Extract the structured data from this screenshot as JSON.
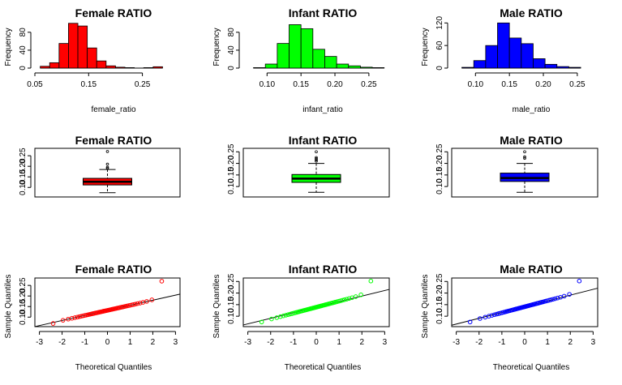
{
  "chart_data": [
    {
      "type": "bar",
      "title": "Female RATIO",
      "xlabel": "female_ratio",
      "ylabel": "Frequency",
      "color": "#ff0000",
      "bin_start": 0.06,
      "bin_width": 0.0175,
      "counts": [
        4,
        12,
        55,
        100,
        94,
        45,
        16,
        5,
        2,
        1,
        0,
        1,
        3
      ],
      "xticks": [
        "0.05",
        "0.15",
        "0.25"
      ],
      "xtick_values": [
        0.05,
        0.15,
        0.25
      ],
      "xlim": [
        0.05,
        0.32
      ],
      "yticks": [
        "0",
        "40",
        "80"
      ],
      "ytick_values": [
        0,
        40,
        80
      ],
      "ylim": [
        0,
        105
      ]
    },
    {
      "type": "bar",
      "title": "Infant RATIO",
      "xlabel": "infant_ratio",
      "ylabel": "Frequency",
      "color": "#00ff00",
      "bin_start": 0.08,
      "bin_width": 0.0175,
      "counts": [
        1,
        9,
        55,
        97,
        88,
        42,
        26,
        9,
        5,
        2,
        1
      ],
      "xticks": [
        "0.10",
        "0.15",
        "0.20",
        "0.25"
      ],
      "xtick_values": [
        0.1,
        0.15,
        0.2,
        0.25
      ],
      "xlim": [
        0.065,
        0.28
      ],
      "yticks": [
        "0",
        "40",
        "80"
      ],
      "ytick_values": [
        0,
        40,
        80
      ],
      "ylim": [
        0,
        105
      ]
    },
    {
      "type": "bar",
      "title": "Male RATIO",
      "xlabel": "male_ratio",
      "ylabel": "Frequency",
      "color": "#0000ff",
      "bin_start": 0.08,
      "bin_width": 0.0175,
      "counts": [
        2,
        20,
        60,
        120,
        80,
        65,
        25,
        10,
        4,
        2
      ],
      "xticks": [
        "0.10",
        "0.15",
        "0.20",
        "0.25"
      ],
      "xtick_values": [
        0.1,
        0.15,
        0.2,
        0.25
      ],
      "xlim": [
        0.065,
        0.28
      ],
      "yticks": [
        "0",
        "60",
        "120"
      ],
      "ytick_values": [
        0,
        60,
        120
      ],
      "ylim": [
        0,
        125
      ]
    },
    {
      "type": "boxplot",
      "title": "Female RATIO",
      "color": "#ff0000",
      "whisker_low": 0.075,
      "q1": 0.112,
      "median": 0.127,
      "q3": 0.143,
      "whisker_high": 0.185,
      "outliers": [
        0.19,
        0.195,
        0.21,
        0.27
      ],
      "yticks": [
        "0.10",
        "0.15",
        "0.20",
        "0.25"
      ],
      "ytick_values": [
        0.1,
        0.15,
        0.2,
        0.25
      ],
      "ylim": [
        0.055,
        0.285
      ]
    },
    {
      "type": "boxplot",
      "title": "Infant RATIO",
      "color": "#00ff00",
      "whisker_low": 0.075,
      "q1": 0.118,
      "median": 0.134,
      "q3": 0.152,
      "whisker_high": 0.2,
      "outliers": [
        0.21,
        0.215,
        0.22,
        0.225,
        0.25
      ],
      "yticks": [
        "0.10",
        "0.15",
        "0.20",
        "0.25"
      ],
      "ytick_values": [
        0.1,
        0.15,
        0.2,
        0.25
      ],
      "ylim": [
        0.055,
        0.265
      ]
    },
    {
      "type": "boxplot",
      "title": "Male RATIO",
      "color": "#0000ff",
      "whisker_low": 0.075,
      "q1": 0.122,
      "median": 0.137,
      "q3": 0.158,
      "whisker_high": 0.2,
      "outliers": [
        0.222,
        0.228,
        0.25
      ],
      "yticks": [
        "0.10",
        "0.15",
        "0.20",
        "0.25"
      ],
      "ytick_values": [
        0.1,
        0.15,
        0.2,
        0.25
      ],
      "ylim": [
        0.055,
        0.265
      ]
    },
    {
      "type": "scatter",
      "title": "Female RATIO",
      "xlabel": "Theoretical Quantiles",
      "ylabel": "Sample Quantiles",
      "color": "#ff0000",
      "mean": 0.132,
      "sd": 0.024,
      "tail_low": 0.07,
      "tail_high": 0.27,
      "n_points": 60,
      "line_intercept": 0.132,
      "line_slope": 0.024,
      "xticks": [
        "-3",
        "-2",
        "-1",
        "0",
        "1",
        "2",
        "3"
      ],
      "xtick_values": [
        -3,
        -2,
        -1,
        0,
        1,
        2,
        3
      ],
      "xlim": [
        -3.2,
        3.2
      ],
      "yticks": [
        "0.10",
        "0.15",
        "0.20",
        "0.25"
      ],
      "ytick_values": [
        0.1,
        0.15,
        0.2,
        0.25
      ],
      "ylim": [
        0.055,
        0.285
      ]
    },
    {
      "type": "scatter",
      "title": "Infant RATIO",
      "xlabel": "Theoretical Quantiles",
      "ylabel": "Sample Quantiles",
      "color": "#00ff00",
      "mean": 0.139,
      "sd": 0.026,
      "tail_low": 0.075,
      "tail_high": 0.252,
      "n_points": 60,
      "line_intercept": 0.139,
      "line_slope": 0.024,
      "xticks": [
        "-3",
        "-2",
        "-1",
        "0",
        "1",
        "2",
        "3"
      ],
      "xtick_values": [
        -3,
        -2,
        -1,
        0,
        1,
        2,
        3
      ],
      "xlim": [
        -3.2,
        3.2
      ],
      "yticks": [
        "0.10",
        "0.15",
        "0.20",
        "0.25"
      ],
      "ytick_values": [
        0.1,
        0.15,
        0.2,
        0.25
      ],
      "ylim": [
        0.055,
        0.265
      ]
    },
    {
      "type": "scatter",
      "title": "Male RATIO",
      "xlabel": "Theoretical Quantiles",
      "ylabel": "Sample Quantiles",
      "color": "#0000ff",
      "mean": 0.141,
      "sd": 0.026,
      "tail_low": 0.075,
      "tail_high": 0.252,
      "n_points": 60,
      "line_intercept": 0.141,
      "line_slope": 0.025,
      "xticks": [
        "-3",
        "-2",
        "-1",
        "0",
        "1",
        "2",
        "3"
      ],
      "xtick_values": [
        -3,
        -2,
        -1,
        0,
        1,
        2,
        3
      ],
      "xlim": [
        -3.2,
        3.2
      ],
      "yticks": [
        "0.10",
        "0.15",
        "0.20",
        "0.25"
      ],
      "ytick_values": [
        0.1,
        0.15,
        0.2,
        0.25
      ],
      "ylim": [
        0.055,
        0.265
      ]
    }
  ]
}
